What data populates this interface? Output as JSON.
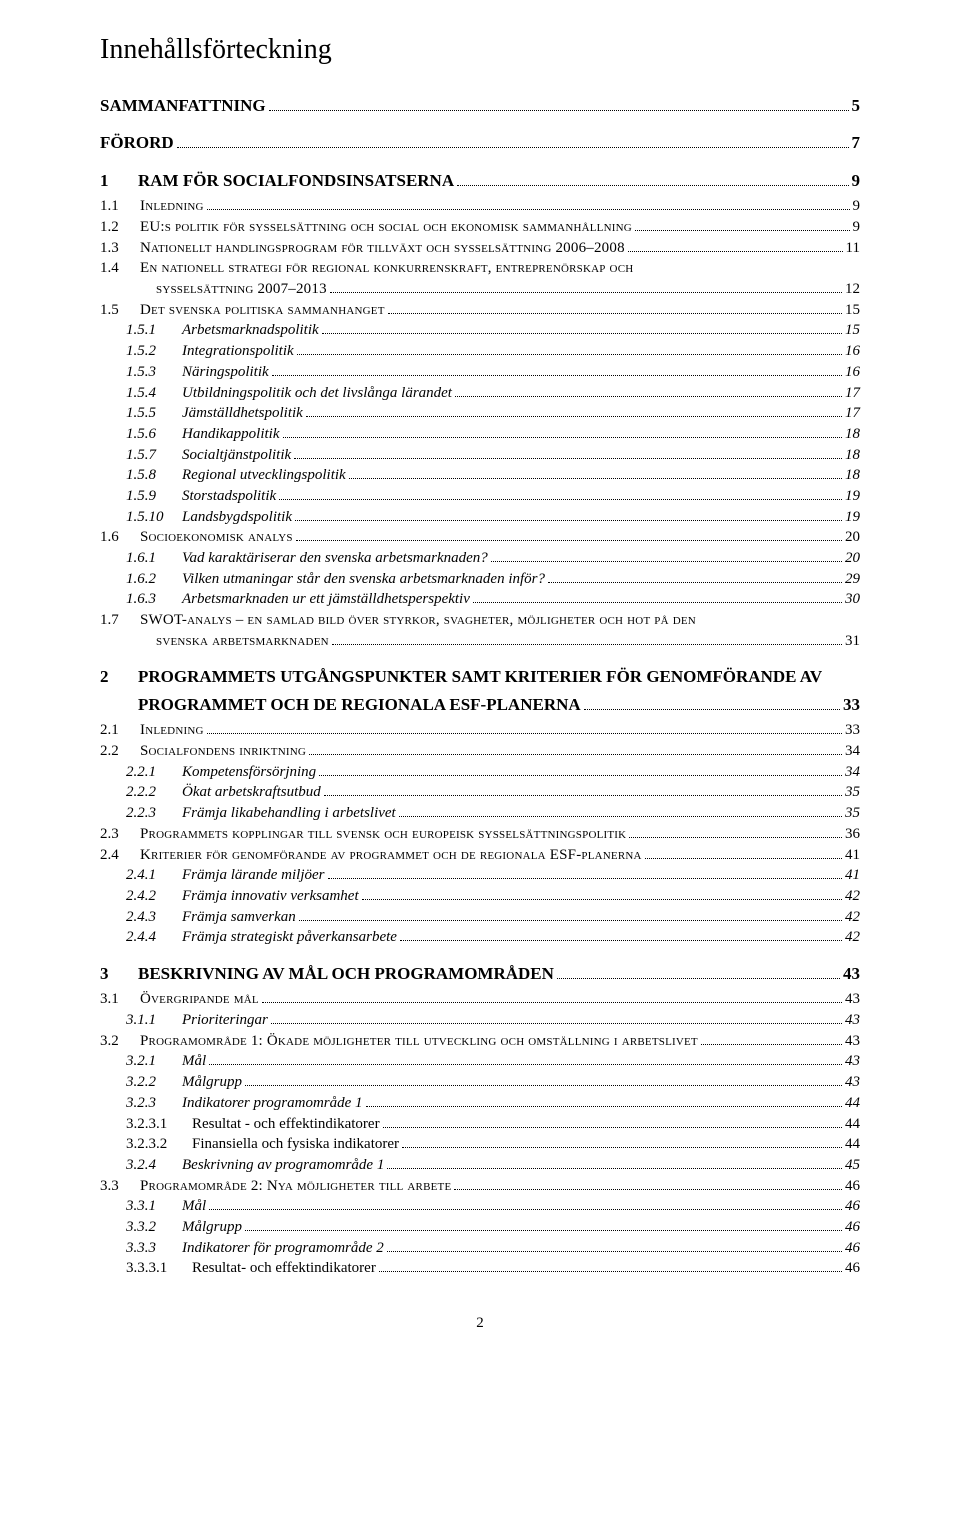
{
  "title": "Innehållsförteckning",
  "pageNumber": "2",
  "toc": [
    {
      "level": "lvl0",
      "noNum": true,
      "num": "",
      "label": "SAMMANFATTNING",
      "page": "5"
    },
    {
      "level": "lvl0",
      "noNum": true,
      "num": "",
      "label": "FÖRORD",
      "page": "7"
    },
    {
      "level": "lvl0",
      "num": "1",
      "label": "RAM FÖR SOCIALFONDSINSATSERNA",
      "page": "9"
    },
    {
      "level": "lvl1",
      "num": "1.1",
      "label": "Inledning",
      "page": "9"
    },
    {
      "level": "lvl1",
      "num": "1.2",
      "label": "EU:s politik för sysselsättning och social och ekonomisk sammanhållning",
      "page": "9"
    },
    {
      "level": "lvl1",
      "num": "1.3",
      "label": "Nationellt handlingsprogram för tillväxt och sysselsättning 2006–2008",
      "page": "11"
    },
    {
      "level": "lvl1w",
      "num": "1.4",
      "labelA": "En nationell strategi för regional konkurrenskraft, entreprenörskap och",
      "labelB": "sysselsättning 2007–2013",
      "page": "12"
    },
    {
      "level": "lvl1",
      "num": "1.5",
      "label": "Det svenska politiska sammanhanget",
      "page": "15"
    },
    {
      "level": "lvl2",
      "num": "1.5.1",
      "label": "Arbetsmarknadspolitik",
      "page": "15"
    },
    {
      "level": "lvl2",
      "num": "1.5.2",
      "label": "Integrationspolitik",
      "page": "16"
    },
    {
      "level": "lvl2",
      "num": "1.5.3",
      "label": "Näringspolitik",
      "page": "16"
    },
    {
      "level": "lvl2",
      "num": "1.5.4",
      "label": "Utbildningspolitik och det livslånga lärandet",
      "page": "17"
    },
    {
      "level": "lvl2",
      "num": "1.5.5",
      "label": "Jämställdhetspolitik",
      "page": "17"
    },
    {
      "level": "lvl2",
      "num": "1.5.6",
      "label": "Handikappolitik",
      "page": "18"
    },
    {
      "level": "lvl2",
      "num": "1.5.7",
      "label": "Socialtjänstpolitik",
      "page": "18"
    },
    {
      "level": "lvl2",
      "num": "1.5.8",
      "label": "Regional utvecklingspolitik",
      "page": "18"
    },
    {
      "level": "lvl2",
      "num": "1.5.9",
      "label": "Storstadspolitik",
      "page": "19"
    },
    {
      "level": "lvl2",
      "num": "1.5.10",
      "label": "Landsbygdspolitik",
      "page": "19"
    },
    {
      "level": "lvl1",
      "num": "1.6",
      "label": "Socioekonomisk analys",
      "page": "20"
    },
    {
      "level": "lvl2",
      "num": "1.6.1",
      "label": "Vad karaktäriserar den svenska arbetsmarknaden?",
      "page": "20"
    },
    {
      "level": "lvl2",
      "num": "1.6.2",
      "label": "Vilken utmaningar står den svenska arbetsmarknaden inför?",
      "page": "29"
    },
    {
      "level": "lvl2",
      "num": "1.6.3",
      "label": "Arbetsmarknaden ur ett jämställdhetsperspektiv",
      "page": "30"
    },
    {
      "level": "lvl1w",
      "num": "1.7",
      "labelA": "SWOT-analys – en samlad bild över styrkor, svagheter, möjligheter och hot på den",
      "labelB": "svenska arbetsmarknaden",
      "page": "31"
    },
    {
      "level": "lvl0",
      "num": "2",
      "label": "PROGRAMMETS UTGÅNGSPUNKTER SAMT  KRITERIER FÖR GENOMFÖRANDE  AV PROGRAMMET OCH DE REGIONALA ESF-PLANERNA",
      "page": "33",
      "wrap": true
    },
    {
      "level": "lvl1",
      "num": "2.1",
      "label": "Inledning",
      "page": "33"
    },
    {
      "level": "lvl1",
      "num": "2.2",
      "label": "Socialfondens inriktning",
      "page": "34"
    },
    {
      "level": "lvl2",
      "num": "2.2.1",
      "label": "Kompetensförsörjning",
      "page": "34"
    },
    {
      "level": "lvl2",
      "num": "2.2.2",
      "label": "Ökat arbetskraftsutbud",
      "page": "35"
    },
    {
      "level": "lvl2",
      "num": "2.2.3",
      "label": "Främja likabehandling i arbetslivet",
      "page": "35"
    },
    {
      "level": "lvl1",
      "num": "2.3",
      "label": "Programmets kopplingar till svensk och europeisk sysselsättningspolitik",
      "page": "36"
    },
    {
      "level": "lvl1",
      "num": "2.4",
      "label": "Kriterier för genomförande av programmet och de regionala ESF-planerna",
      "page": "41"
    },
    {
      "level": "lvl2",
      "num": "2.4.1",
      "label": "Främja lärande miljöer",
      "page": "41"
    },
    {
      "level": "lvl2",
      "num": "2.4.2",
      "label": "Främja innovativ verksamhet",
      "page": "42"
    },
    {
      "level": "lvl2",
      "num": "2.4.3",
      "label": "Främja samverkan",
      "page": "42"
    },
    {
      "level": "lvl2",
      "num": "2.4.4",
      "label": "Främja strategiskt påverkansarbete",
      "page": "42"
    },
    {
      "level": "lvl0",
      "num": "3",
      "label": "BESKRIVNING AV MÅL OCH PROGRAMOMRÅDEN",
      "page": "43"
    },
    {
      "level": "lvl1",
      "num": "3.1",
      "label": "Övergripande mål",
      "page": "43"
    },
    {
      "level": "lvl2",
      "num": "3.1.1",
      "label": "Prioriteringar",
      "page": "43"
    },
    {
      "level": "lvl1",
      "num": "3.2",
      "label": "Programområde 1: Ökade möjligheter till utveckling och omställning i arbetslivet",
      "page": "43",
      "tightDots": true
    },
    {
      "level": "lvl2",
      "num": "3.2.1",
      "label": "Mål",
      "page": "43"
    },
    {
      "level": "lvl2",
      "num": "3.2.2",
      "label": "Målgrupp",
      "page": "43"
    },
    {
      "level": "lvl2",
      "num": "3.2.3",
      "label": "Indikatorer programområde 1",
      "page": "44"
    },
    {
      "level": "lvl3",
      "num": "3.2.3.1",
      "label": "Resultat - och effektindikatorer",
      "page": "44"
    },
    {
      "level": "lvl3",
      "num": "3.2.3.2",
      "label": "Finansiella och fysiska indikatorer",
      "page": "44"
    },
    {
      "level": "lvl2",
      "num": "3.2.4",
      "label": "Beskrivning av programområde 1",
      "page": "45"
    },
    {
      "level": "lvl1",
      "num": "3.3",
      "label": "Programområde 2: Nya möjligheter till arbete",
      "page": "46"
    },
    {
      "level": "lvl2",
      "num": "3.3.1",
      "label": "Mål",
      "page": "46"
    },
    {
      "level": "lvl2",
      "num": "3.3.2",
      "label": "Målgrupp",
      "page": "46"
    },
    {
      "level": "lvl2",
      "num": "3.3.3",
      "label": "Indikatorer för programområde 2",
      "page": "46"
    },
    {
      "level": "lvl3",
      "num": "3.3.3.1",
      "label": "Resultat- och effektindikatorer",
      "page": "46"
    }
  ]
}
